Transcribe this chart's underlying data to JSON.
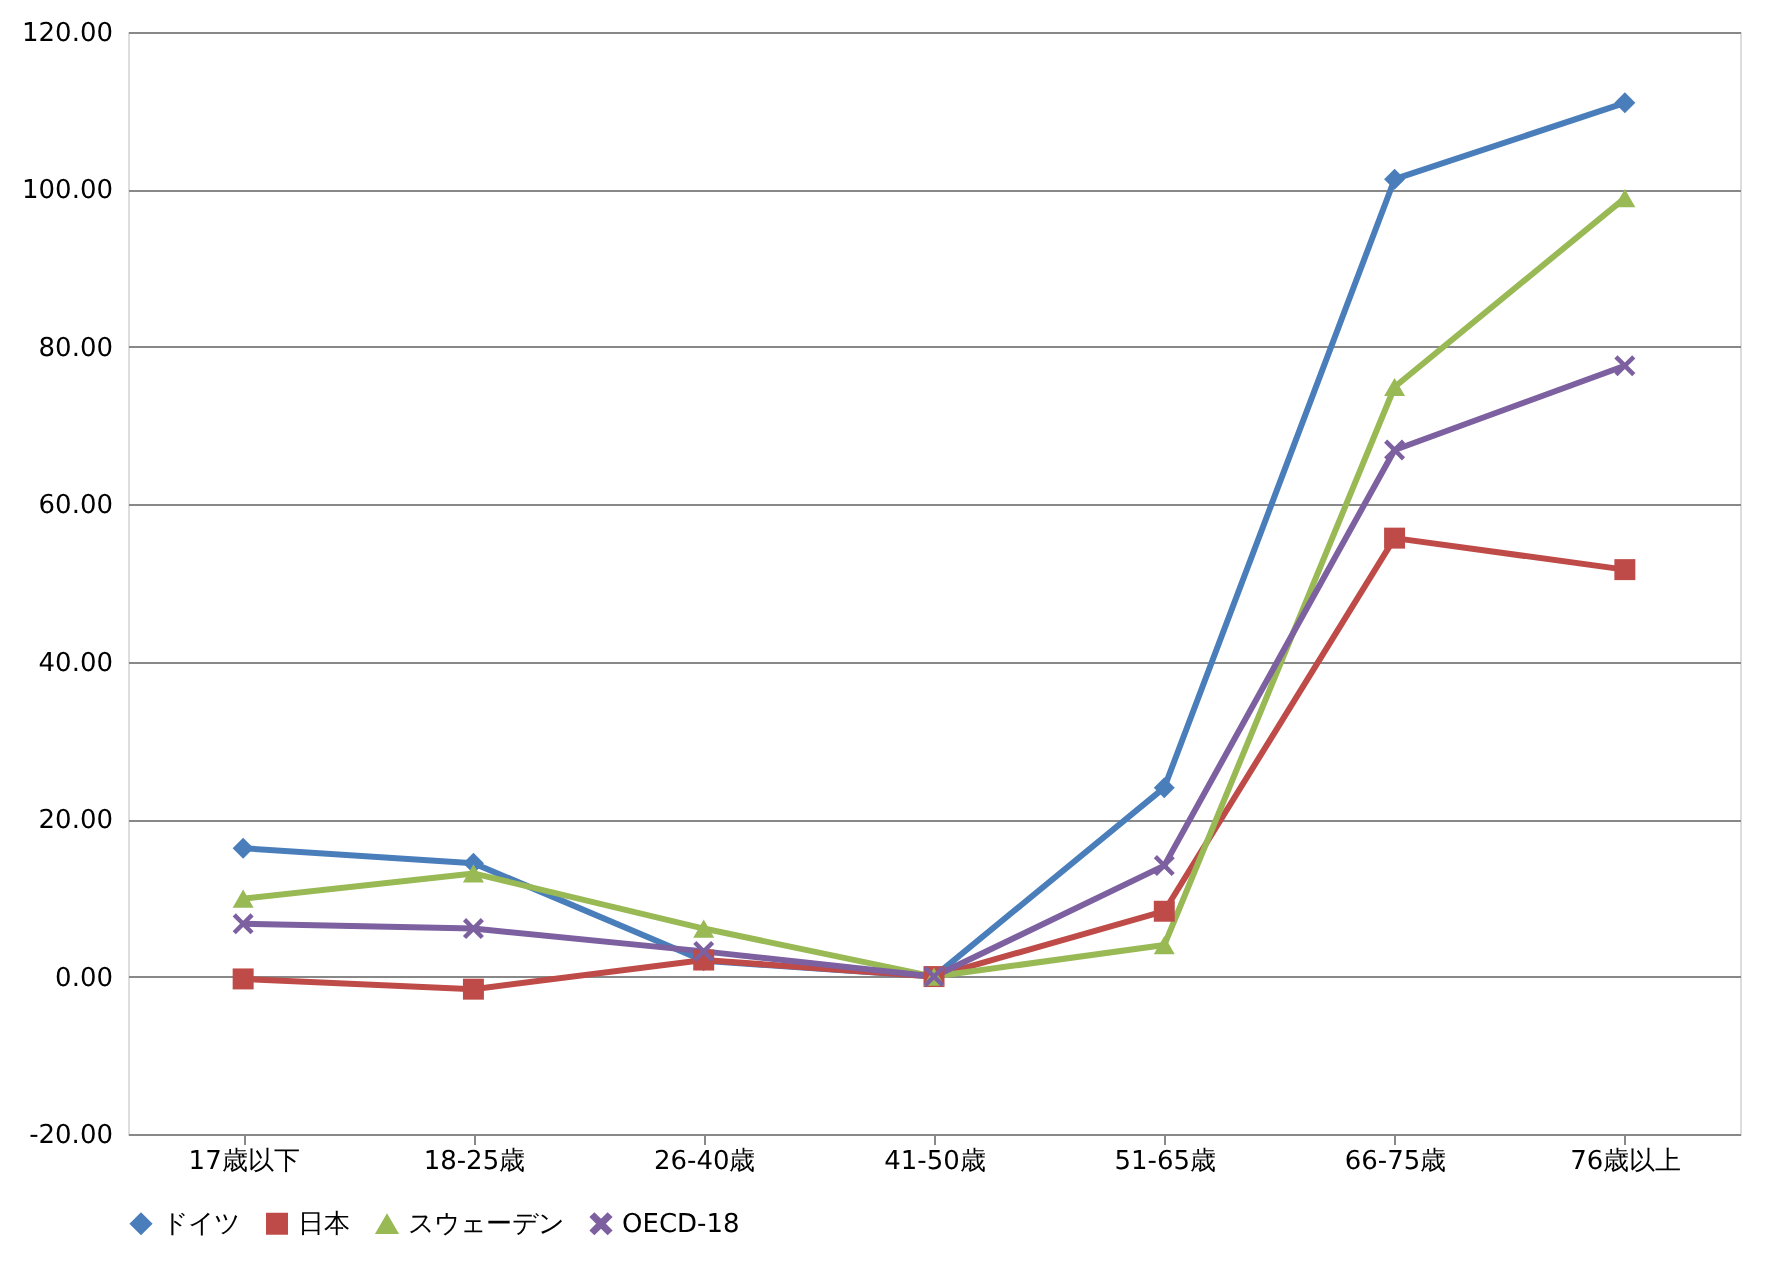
{
  "chart_data": {
    "type": "line",
    "categories": [
      "17歳以下",
      "18-25歳",
      "26-40歳",
      "41-50歳",
      "51-65歳",
      "66-75歳",
      "76歳以上"
    ],
    "series": [
      {
        "name": "ドイツ",
        "color": "#4a7ebb",
        "marker": "diamond",
        "values": [
          16.3,
          14.4,
          2.0,
          0.0,
          24.0,
          101.3,
          111.0
        ]
      },
      {
        "name": "日本",
        "color": "#be4b48",
        "marker": "square",
        "values": [
          -0.3,
          -1.6,
          2.1,
          0.0,
          8.3,
          55.7,
          51.7
        ]
      },
      {
        "name": "スウェーデン",
        "color": "#98b954",
        "marker": "triangle",
        "values": [
          9.9,
          13.1,
          6.1,
          0.0,
          4.0,
          74.9,
          98.9
        ]
      },
      {
        "name": "OECD-18",
        "color": "#7d60a0",
        "marker": "cross",
        "values": [
          6.7,
          6.1,
          3.2,
          0.0,
          14.1,
          66.9,
          77.6
        ]
      }
    ],
    "ylim": [
      -20,
      120
    ],
    "yticks": [
      {
        "value": -20,
        "label": "-20.00"
      },
      {
        "value": 0,
        "label": "0.00"
      },
      {
        "value": 20,
        "label": "20.00"
      },
      {
        "value": 40,
        "label": "40.00"
      },
      {
        "value": 60,
        "label": "60.00"
      },
      {
        "value": 80,
        "label": "80.00"
      },
      {
        "value": 100,
        "label": "100.00"
      },
      {
        "value": 120,
        "label": "120.00"
      }
    ],
    "grid": "y",
    "legend": "bottom",
    "line_style": "solid"
  }
}
